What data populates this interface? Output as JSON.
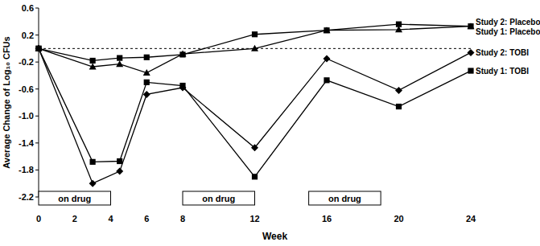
{
  "chart_data": {
    "type": "line",
    "x_label": "Week",
    "y_label": "Average Change of Log₁₀ CFUs",
    "x": [
      0,
      3,
      4.5,
      6,
      8,
      12,
      16,
      20,
      24
    ],
    "xlim": [
      0,
      24
    ],
    "xticks": [
      0,
      2,
      4,
      6,
      8,
      12,
      16,
      20,
      24
    ],
    "ylim": [
      -2.2,
      0.6
    ],
    "yticks": [
      -2.2,
      -1.8,
      -1.4,
      {
        "value": -1,
        "label": "-1.0"
      },
      -0.6,
      -0.2,
      0.2,
      0.6
    ],
    "baseline": 0,
    "grid": false,
    "series": [
      {
        "name": "Study 2: Placebo",
        "color": "#000000",
        "marker": "triangle",
        "line_style": "solid",
        "values": [
          0,
          -0.27,
          -0.23,
          -0.36,
          -0.08,
          0.0,
          0.27,
          0.28,
          0.33
        ]
      },
      {
        "name": "Study 1: Placebo",
        "color": "#000000",
        "marker": "square",
        "line_style": "solid",
        "values": [
          0,
          -0.18,
          -0.14,
          -0.13,
          -0.09,
          0.21,
          0.27,
          0.36,
          0.33
        ]
      },
      {
        "name": "Study 2: TOBI",
        "color": "#000000",
        "marker": "diamond",
        "line_style": "solid",
        "values": [
          0,
          -2.0,
          -1.82,
          -0.68,
          -0.58,
          -1.47,
          -0.15,
          -0.62,
          -0.06
        ]
      },
      {
        "name": "Study 1: TOBI",
        "color": "#000000",
        "marker": "square",
        "line_style": "solid",
        "values": [
          0,
          -1.68,
          -1.67,
          -0.5,
          -0.55,
          -1.9,
          -0.47,
          -0.86,
          -0.33
        ]
      }
    ],
    "annotations": [
      {
        "text": "on drug",
        "x": [
          0,
          4
        ]
      },
      {
        "text": "on drug",
        "x": [
          8,
          12
        ]
      },
      {
        "text": "on drug",
        "x": [
          15,
          19
        ]
      }
    ]
  }
}
